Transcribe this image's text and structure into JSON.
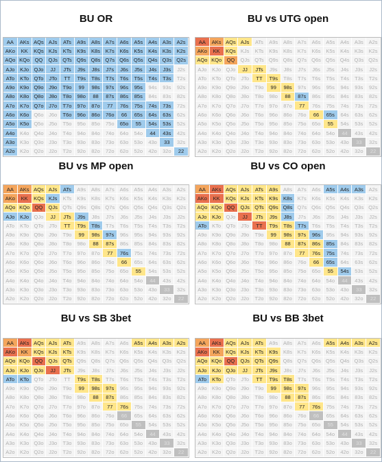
{
  "hands": [
    [
      "AA",
      "AKs",
      "AQs",
      "AJs",
      "ATs",
      "A9s",
      "A8s",
      "A7s",
      "A6s",
      "A5s",
      "A4s",
      "A3s",
      "A2s"
    ],
    [
      "AKo",
      "KK",
      "KQs",
      "KJs",
      "KTs",
      "K9s",
      "K8s",
      "K7s",
      "K6s",
      "K5s",
      "K4s",
      "K3s",
      "K2s"
    ],
    [
      "AQo",
      "KQo",
      "QQ",
      "QJs",
      "QTs",
      "Q9s",
      "Q8s",
      "Q7s",
      "Q6s",
      "Q5s",
      "Q4s",
      "Q3s",
      "Q2s"
    ],
    [
      "AJo",
      "KJo",
      "QJo",
      "JJ",
      "JTs",
      "J9s",
      "J8s",
      "J7s",
      "J6s",
      "J5s",
      "J4s",
      "J3s",
      "J2s"
    ],
    [
      "ATo",
      "KTo",
      "QTo",
      "JTo",
      "TT",
      "T9s",
      "T8s",
      "T7s",
      "T6s",
      "T5s",
      "T4s",
      "T3s",
      "T2s"
    ],
    [
      "A9o",
      "K9o",
      "Q9o",
      "J9o",
      "T9o",
      "99",
      "98s",
      "97s",
      "96s",
      "95s",
      "94s",
      "93s",
      "92s"
    ],
    [
      "A8o",
      "K8o",
      "Q8o",
      "J8o",
      "T8o",
      "98o",
      "88",
      "87s",
      "86s",
      "85s",
      "84s",
      "83s",
      "82s"
    ],
    [
      "A7o",
      "K7o",
      "Q7o",
      "J7o",
      "T7o",
      "97o",
      "87o",
      "77",
      "76s",
      "75s",
      "74s",
      "73s",
      "72s"
    ],
    [
      "A6o",
      "K6o",
      "Q6o",
      "J6o",
      "T6o",
      "96o",
      "86o",
      "76o",
      "66",
      "65s",
      "64s",
      "63s",
      "62s"
    ],
    [
      "A5o",
      "K5o",
      "Q5o",
      "J5o",
      "T5o",
      "95o",
      "85o",
      "75o",
      "65o",
      "55",
      "54s",
      "53s",
      "52s"
    ],
    [
      "A4o",
      "K4o",
      "Q4o",
      "J4o",
      "T4o",
      "94o",
      "84o",
      "74o",
      "64o",
      "54o",
      "44",
      "43s",
      "42s"
    ],
    [
      "A3o",
      "K3o",
      "Q3o",
      "J3o",
      "T3o",
      "93o",
      "83o",
      "73o",
      "63o",
      "53o",
      "43o",
      "33",
      "32s"
    ],
    [
      "A2o",
      "K2o",
      "Q2o",
      "J2o",
      "T2o",
      "92o",
      "82o",
      "72o",
      "62o",
      "52o",
      "42o",
      "32o",
      "22"
    ]
  ],
  "palette": {
    "B": "#9fcbec",
    "R": "#e9704e",
    "O": "#f4a55c",
    "Y": "#ffe68a",
    "G": "#bfbfbf",
    ".": "#f4f4f4"
  },
  "charts": [
    {
      "title": "BU OR",
      "cells": [
        "BBBBBBBBBBBBB",
        "BBBBBBBBBBBBB",
        "BBBBBBBBBBBBB",
        "BBBBBBBBBBBB.",
        "BBBBBBBBBBBB.",
        "BBBBBBBBBB...",
        "BBBBBBBBBB...",
        "BBBBBBBBBBBB.",
        "BB..BBBBBBBB.",
        "BB......BBBB.",
        "B.........BB.",
        "B..........B.",
        "B...........B"
      ]
    },
    {
      "title": "BU vs UTG open",
      "cells": [
        "ROYY.........",
        "ORY..........",
        "YYO..........",
        "...YY........",
        "....YY.......",
        ".....YY......",
        "......YB.....",
        ".......Y.....",
        "........YB...",
        ".........Y...",
        "..........G..",
        "...........G.",
        "............G"
      ]
    },
    {
      "title": "BU vs MP open",
      "cells": [
        "OOYYB........",
        "ORYB.........",
        "YYRY.........",
        "BB.YYB.......",
        "....YYB......",
        ".....YYB.....",
        "......YY.....",
        ".......YB....",
        "........Y....",
        ".........Y...",
        "..........G..",
        "...........G.",
        "............G"
      ]
    },
    {
      "title": "BU vs CO open",
      "cells": [
        "ORYYYY...BBB.",
        "RRYYYYB......",
        "YYRYYYB......",
        "YY.RYYB......",
        "B...RYYB.....",
        ".....YYYB....",
        "......YYYB...",
        ".......YYB...",
        "........YB...",
        ".........YB..",
        "..........G..",
        "...........G.",
        "............G"
      ]
    },
    {
      "title": "BU vs SB 3bet",
      "cells": [
        "ORYYY....YYYY",
        "ROYYY........",
        "YYRYY........",
        "YYYRY........",
        "BB...YY......",
        ".....YYY.....",
        "......YY.....",
        ".......YY....",
        "........G....",
        ".........G...",
        "..........G..",
        "...........G.",
        "............G"
      ]
    },
    {
      "title": "BU vs BB 3bet",
      "cells": [
        "ORYYY....YYYY",
        "ROYYYY.......",
        "YYRYYY.......",
        "YYYYYY.......",
        "BY..YYY......",
        ".....YYY.....",
        "......YY.....",
        ".......YY....",
        "........G....",
        ".........G...",
        "..........G..",
        "...........G.",
        "............G"
      ]
    }
  ]
}
